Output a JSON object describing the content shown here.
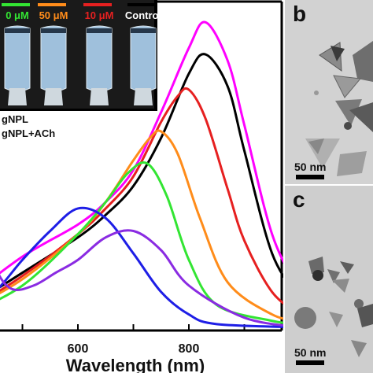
{
  "plot": {
    "xlabel": "Wavelength (nm)",
    "xticks": [
      "600",
      "800"
    ],
    "legend": [
      "gNPL",
      "gNPL+ACh"
    ],
    "vials": [
      {
        "label": "0 μM",
        "color": "#33e533"
      },
      {
        "label": "50 μM",
        "color": "#ff8c1a"
      },
      {
        "label": "10 μM",
        "color": "#e62020"
      },
      {
        "label": "Control",
        "color": "#000000"
      }
    ]
  },
  "panels": {
    "b": {
      "letter": "b",
      "scale": "50 nm"
    },
    "c": {
      "letter": "c",
      "scale": "50 nm"
    }
  },
  "chart_data": {
    "type": "line",
    "xlabel": "Wavelength (nm)",
    "ylabel": "",
    "xlim": [
      400,
      1000
    ],
    "xticks": [
      600,
      800
    ],
    "series": [
      {
        "color": "#ff00ff",
        "peak_nm": 830,
        "x": [
          400,
          500,
          600,
          650,
          700,
          750,
          800,
          830,
          870,
          900,
          950,
          1000
        ],
        "y": [
          0.1,
          0.23,
          0.33,
          0.4,
          0.5,
          0.68,
          0.88,
          0.96,
          0.84,
          0.64,
          0.3,
          0.12
        ]
      },
      {
        "color": "#000000",
        "peak_nm": 830,
        "x": [
          400,
          500,
          600,
          650,
          700,
          750,
          800,
          830,
          870,
          900,
          950,
          1000
        ],
        "y": [
          0.07,
          0.18,
          0.29,
          0.36,
          0.45,
          0.6,
          0.8,
          0.86,
          0.76,
          0.56,
          0.24,
          0.1
        ]
      },
      {
        "color": "#e62020",
        "peak_nm": 800,
        "x": [
          400,
          500,
          600,
          650,
          700,
          750,
          780,
          800,
          830,
          870,
          900,
          950,
          1000
        ],
        "y": [
          0.06,
          0.17,
          0.3,
          0.38,
          0.48,
          0.65,
          0.73,
          0.75,
          0.66,
          0.44,
          0.28,
          0.12,
          0.05
        ]
      },
      {
        "color": "#ff8c1a",
        "peak_nm": 750,
        "x": [
          400,
          500,
          600,
          650,
          700,
          730,
          750,
          780,
          820,
          870,
          950,
          1000
        ],
        "y": [
          0.06,
          0.16,
          0.3,
          0.4,
          0.53,
          0.6,
          0.62,
          0.55,
          0.35,
          0.15,
          0.05,
          0.03
        ]
      },
      {
        "color": "#33e533",
        "peak_nm": 725,
        "x": [
          400,
          500,
          600,
          650,
          690,
          725,
          760,
          800,
          850,
          950,
          1000
        ],
        "y": [
          0.05,
          0.14,
          0.3,
          0.4,
          0.49,
          0.52,
          0.42,
          0.22,
          0.08,
          0.03,
          0.02
        ]
      },
      {
        "color": "#1e1ee6",
        "peak_nm": 610,
        "x": [
          400,
          450,
          500,
          550,
          600,
          650,
          700,
          750,
          800,
          850,
          1000
        ],
        "y": [
          0.07,
          0.12,
          0.22,
          0.31,
          0.38,
          0.35,
          0.24,
          0.12,
          0.05,
          0.02,
          0.01
        ]
      },
      {
        "color": "#8a2be2",
        "peak_nm": 700,
        "x": [
          400,
          420,
          450,
          480,
          520,
          560,
          600,
          650,
          700,
          750,
          800,
          900,
          1000
        ],
        "y": [
          0.4,
          0.36,
          0.2,
          0.13,
          0.14,
          0.18,
          0.22,
          0.29,
          0.31,
          0.25,
          0.14,
          0.04,
          0.01
        ]
      }
    ]
  }
}
